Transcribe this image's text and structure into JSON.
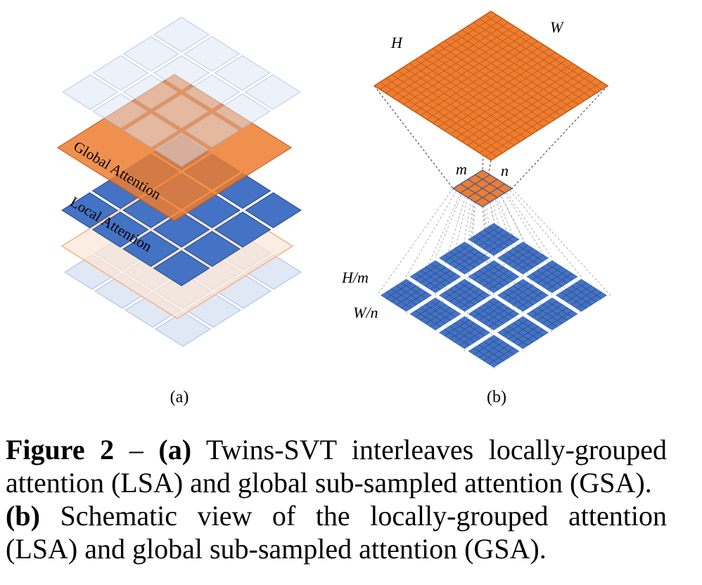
{
  "panel_a": {
    "label": "(a)",
    "global_layer_label": "Global Attention",
    "local_layer_label": "Local Attention"
  },
  "panel_b": {
    "label": "(b)",
    "dim_h": "H",
    "dim_w": "W",
    "dim_m": "m",
    "dim_n": "n",
    "dim_h_over_m": "H/m",
    "dim_w_over_n": "W/n"
  },
  "colors": {
    "orange": "#ED7D31",
    "blue": "#4472C4",
    "light_blue": "#DAE3F3",
    "light_orange": "#FBE5D6"
  },
  "caption": {
    "figure_number": "Figure 2",
    "dash": " – ",
    "part_a": "(a)",
    "text_a_1": " Twins-SVT interleaves locally-grouped",
    "text_a_2": "attention (LSA) and global sub-sampled attention (GSA).",
    "part_b": "(b)",
    "text_b_1": " Schematic view of the locally-grouped attention",
    "text_b_2": "(LSA) and global sub-sampled attention (GSA)."
  }
}
